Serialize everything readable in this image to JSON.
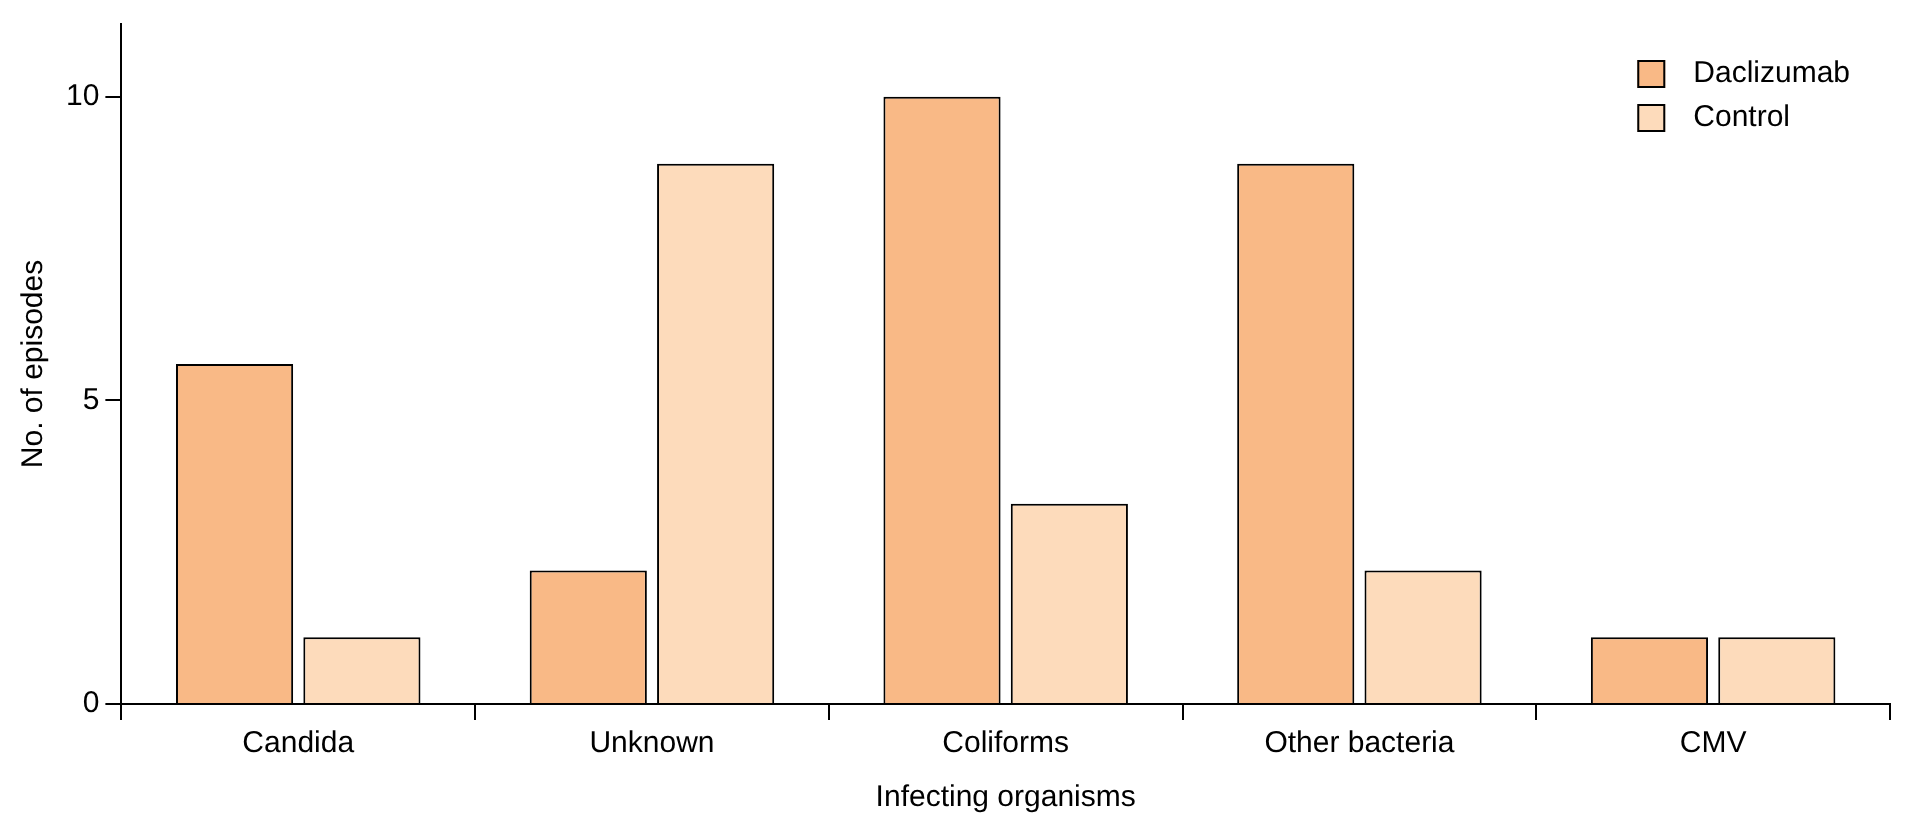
{
  "chart_data": {
    "type": "bar",
    "xlabel": "Infecting organisms",
    "ylabel": "No. of episodes",
    "categories": [
      "Candida",
      "Unknown",
      "Coliforms",
      "Other bacteria",
      "CMV"
    ],
    "series": [
      {
        "name": "Daclizumab",
        "color": "#f9b986",
        "values": [
          5.6,
          2.2,
          10,
          8.9,
          1.1
        ]
      },
      {
        "name": "Control",
        "color": "#fddbbb",
        "values": [
          1.1,
          8.9,
          3.3,
          2.2,
          1.1
        ]
      }
    ],
    "ylim": [
      0,
      11.2
    ],
    "yticks": [
      0,
      5,
      10
    ],
    "grid": false,
    "legend": "top right"
  }
}
